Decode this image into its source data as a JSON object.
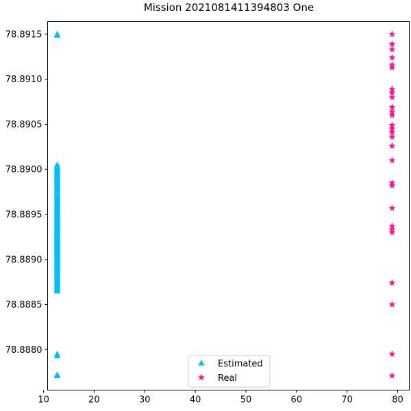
{
  "chart_data": {
    "type": "scatter",
    "title": "Mission 2021081411394803 One",
    "xlabel": "",
    "ylabel": "",
    "xlim": [
      10.8,
      82.3
    ],
    "ylim": [
      78.88755,
      78.89164
    ],
    "xticks": [
      10,
      20,
      30,
      40,
      50,
      60,
      70,
      80
    ],
    "yticks": [
      78.888,
      78.8885,
      78.889,
      78.8895,
      78.89,
      78.8905,
      78.891,
      78.8915
    ],
    "ytick_labels": [
      "78.8880",
      "78.8885",
      "78.8890",
      "78.8895",
      "78.8900",
      "78.8905",
      "78.8910",
      "78.8915"
    ],
    "grid": false,
    "legend_position": "lower-center",
    "series": [
      {
        "name": "Estimated",
        "marker": "triangle",
        "color": "#00BFFF",
        "x": 12.7,
        "y_groups": [
          {
            "single": [
              78.89149,
              78.8915,
              78.88795,
              78.88793,
              78.88771,
              78.88772
            ]
          },
          {
            "range": [
              78.88865,
              78.89005
            ],
            "step": 1.25e-05
          }
        ]
      },
      {
        "name": "Real",
        "marker": "star",
        "color": "#FF1493",
        "x": 78.9,
        "y": [
          78.8915,
          78.89139,
          78.89133,
          78.89124,
          78.89116,
          78.89113,
          78.89089,
          78.89085,
          78.8908,
          78.89069,
          78.89064,
          78.8906,
          78.89049,
          78.89045,
          78.89041,
          78.89036,
          78.89026,
          78.8901,
          78.88985,
          78.88982,
          78.88957,
          78.88937,
          78.88933,
          78.8893,
          78.88874,
          78.8885,
          78.88795,
          78.88771
        ]
      }
    ]
  }
}
